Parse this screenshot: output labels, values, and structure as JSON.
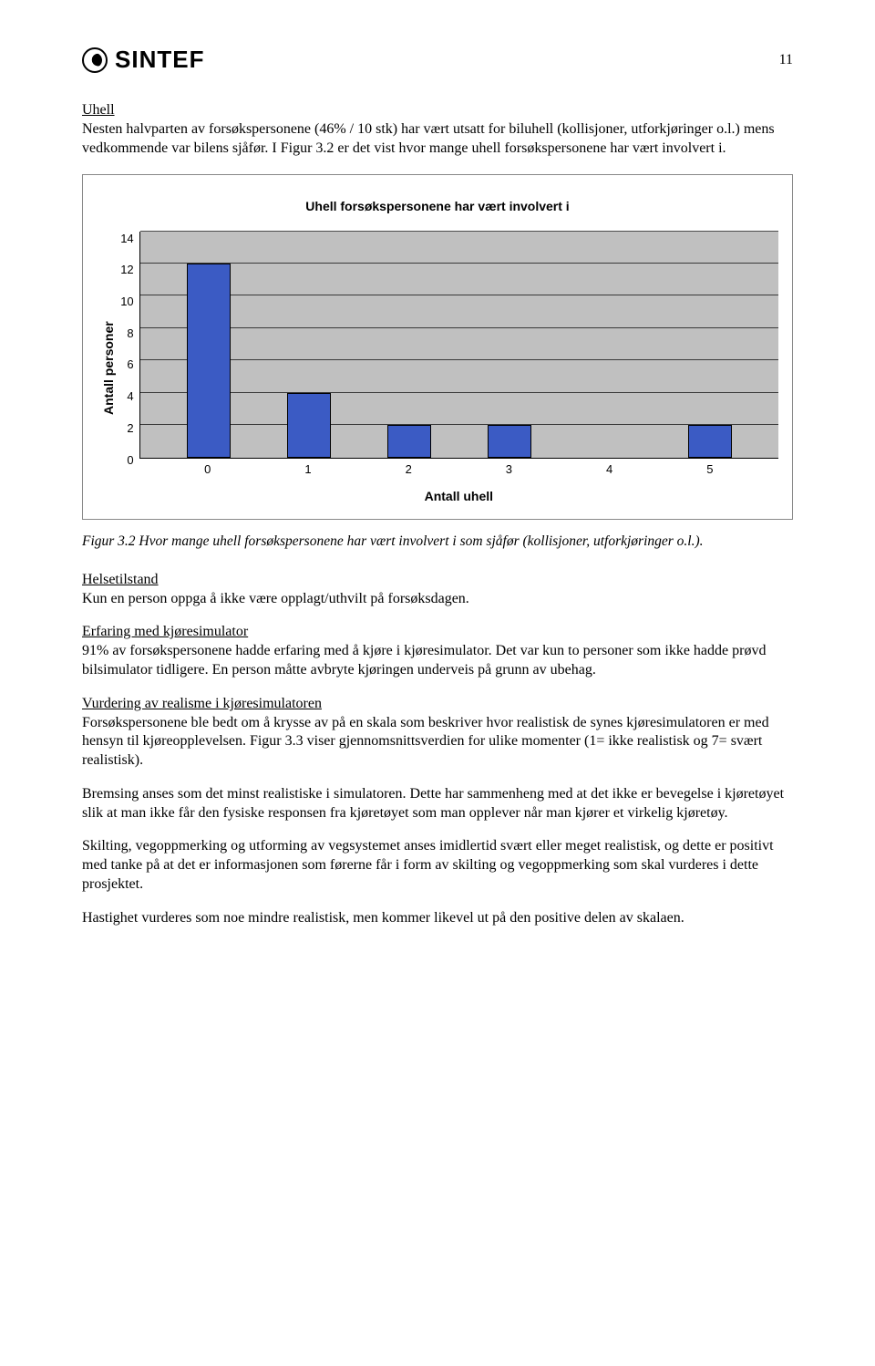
{
  "header": {
    "logo_text": "SINTEF",
    "page_number": "11"
  },
  "section_uhell": {
    "heading": "Uhell",
    "text": "Nesten halvparten av forsøkspersonene (46% / 10 stk) har vært utsatt for biluhell (kollisjoner, utforkjøringer o.l.) mens vedkommende var bilens sjåfør. I Figur 3.2 er det vist hvor mange uhell forsøkspersonene har vært involvert i."
  },
  "chart": {
    "type": "bar",
    "title": "Uhell forsøkspersonene har vært involvert i",
    "ylabel": "Antall personer",
    "xlabel": "Antall uhell",
    "categories": [
      "0",
      "1",
      "2",
      "3",
      "4",
      "5"
    ],
    "values": [
      12,
      4,
      2,
      2,
      0,
      2
    ],
    "ylim": [
      0,
      14
    ],
    "ytick_step": 2,
    "yticks": [
      "14",
      "12",
      "10",
      "8",
      "6",
      "4",
      "2",
      "0"
    ],
    "bar_color": "#3b5bc4",
    "plot_bg": "#c0c0c0",
    "grid_color": "#000000",
    "label_fontsize": 14,
    "tick_fontsize": 13,
    "title_fontsize": 14
  },
  "figure_caption": "Figur 3.2 Hvor mange uhell forsøkspersonene har vært involvert i som sjåfør (kollisjoner, utforkjøringer o.l.).",
  "section_helse": {
    "heading": "Helsetilstand",
    "text": "Kun en person oppga å ikke være opplagt/uthvilt på forsøksdagen."
  },
  "section_erfaring": {
    "heading": "Erfaring med kjøresimulator",
    "text": "91% av forsøkspersonene hadde erfaring med å kjøre i kjøresimulator. Det var kun to personer som ikke hadde prøvd bilsimulator tidligere. En person måtte avbryte kjøringen underveis på grunn av ubehag."
  },
  "section_vurdering": {
    "heading": "Vurdering av realisme i kjøresimulatoren",
    "text": "Forsøkspersonene ble bedt om å krysse av på en skala som beskriver hvor realistisk de synes kjøresimulatoren er med hensyn til kjøreopplevelsen. Figur 3.3 viser gjennomsnittsverdien for ulike momenter (1= ikke realistisk og 7= svært realistisk)."
  },
  "para_bremsing": "Bremsing anses som det minst realistiske i simulatoren. Dette har sammenheng med at det ikke er bevegelse i kjøretøyet slik at man ikke får den fysiske responsen fra kjøretøyet som man opplever når man kjører et virkelig kjøretøy.",
  "para_skilting": "Skilting, vegoppmerking og utforming av vegsystemet anses imidlertid svært eller meget realistisk, og dette er positivt med tanke på at det er informasjonen som førerne får i form av skilting og vegoppmerking som skal vurderes i dette prosjektet.",
  "para_hastighet": "Hastighet vurderes som noe mindre realistisk, men kommer likevel ut på den positive delen av skalaen."
}
